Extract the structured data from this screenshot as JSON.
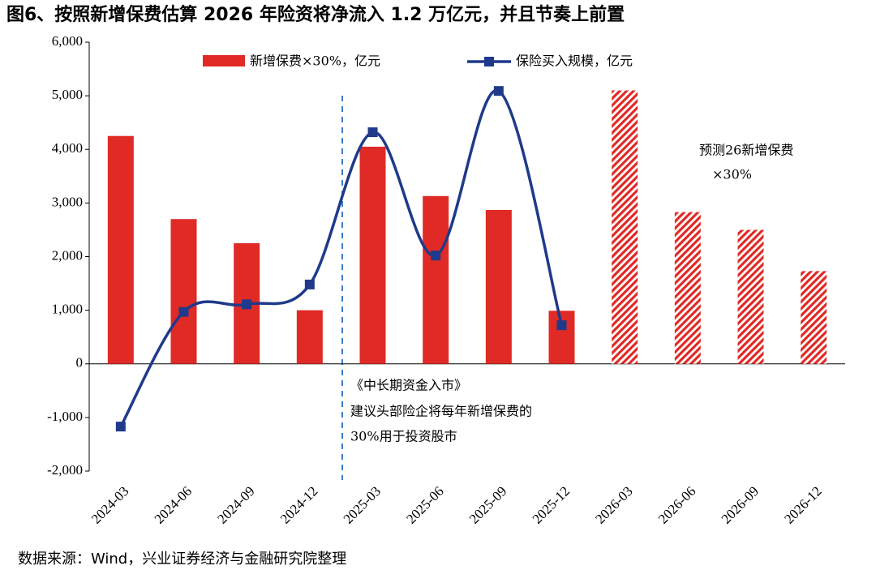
{
  "chart_data": {
    "type": "bar_line",
    "title": "图6、按照新增保费估算 2026 年险资将净流入 1.2 万亿元，并且节奏上前置",
    "source": "数据来源：Wind，兴业证券经济与金融研究院整理",
    "annotations": [
      "《中长期资金入市》",
      "建议头部险企将每年新增保费的",
      "30%用于投资股市",
      "预测26新增保费",
      "×30%"
    ],
    "categories": [
      "2024-03",
      "2024-06",
      "2024-09",
      "2024-12",
      "2025-03",
      "2025-06",
      "2025-09",
      "2025-12",
      "2026-03",
      "2026-06",
      "2026-09",
      "2026-12"
    ],
    "series": [
      {
        "name": "新增保费×30%，亿元",
        "type": "bar",
        "color": "#e02a26",
        "values": [
          4250,
          2700,
          2250,
          1000,
          4050,
          3130,
          2870,
          990,
          5100,
          2830,
          2500,
          1730
        ],
        "hatched": [
          false,
          false,
          false,
          false,
          false,
          false,
          false,
          false,
          true,
          true,
          true,
          true
        ]
      },
      {
        "name": "保险买入规模，亿元",
        "type": "line",
        "color": "#1f3a8a",
        "values": [
          -1170,
          970,
          1110,
          1480,
          4320,
          2020,
          5090,
          720,
          null,
          null,
          null,
          null
        ]
      }
    ],
    "ylim": [
      -2000,
      6000
    ],
    "yticks": [
      {
        "value": 6000,
        "label": "6,000"
      },
      {
        "value": 5000,
        "label": "5,000"
      },
      {
        "value": 4000,
        "label": "4,000"
      },
      {
        "value": 3000,
        "label": "3,000"
      },
      {
        "value": 2000,
        "label": "2,000"
      },
      {
        "value": 1000,
        "label": "1,000"
      },
      0,
      {
        "value": -1000,
        "label": "-1,000"
      },
      {
        "value": -2000,
        "label": "-2,000"
      }
    ]
  }
}
